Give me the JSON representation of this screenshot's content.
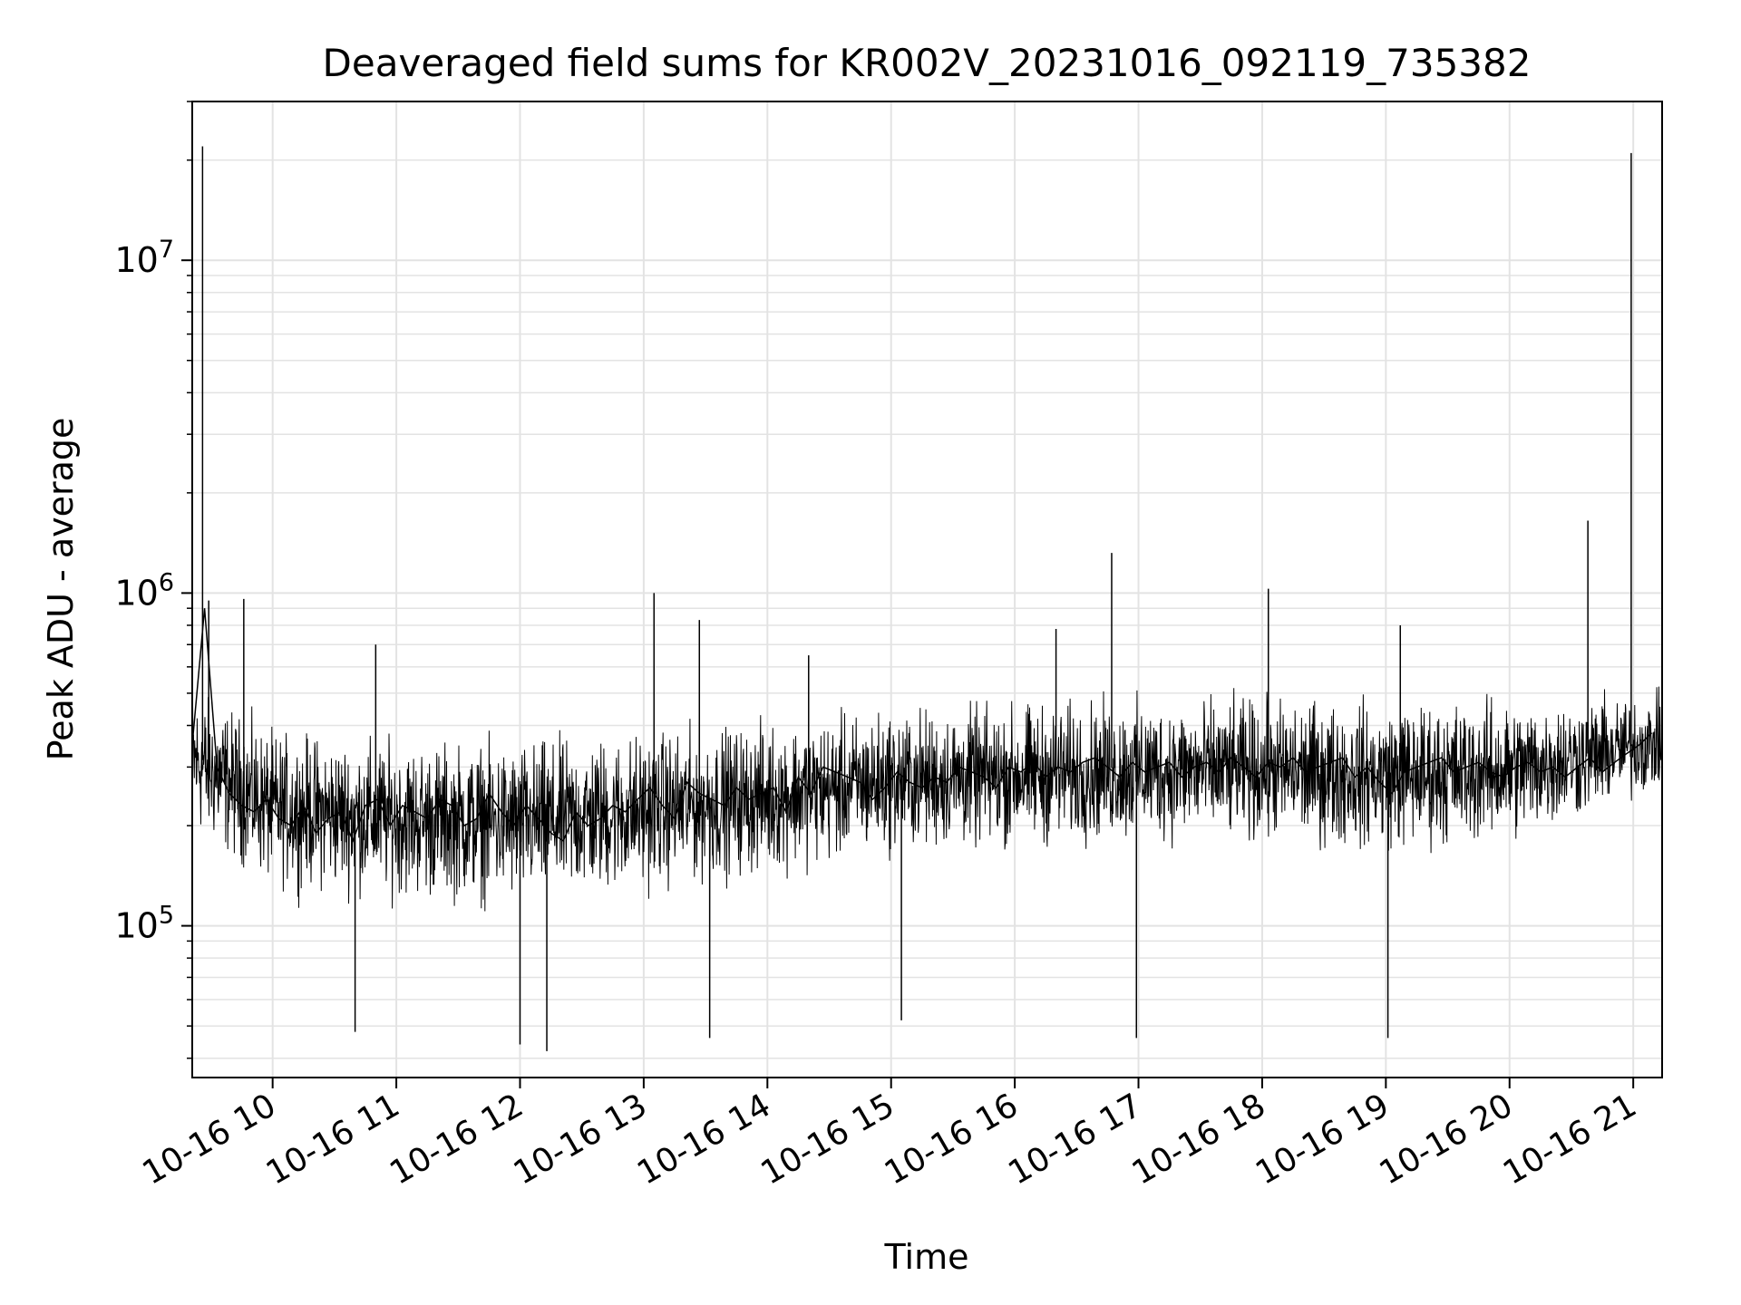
{
  "chart_data": {
    "type": "line",
    "title": "Deaveraged field sums for KR002V_20231016_092119_735382",
    "xlabel": "Time",
    "ylabel": "Peak ADU - average",
    "yscale": "log",
    "grid": true,
    "legend": "none",
    "line_color": "#000000",
    "xlim": [
      "2023-10-16 09:21",
      "2023-10-16 21:14"
    ],
    "ylim": [
      35000,
      30000000
    ],
    "x_ticks": [
      {
        "time": "2023-10-16 10:00",
        "label": "10-16 10"
      },
      {
        "time": "2023-10-16 11:00",
        "label": "10-16 11"
      },
      {
        "time": "2023-10-16 12:00",
        "label": "10-16 12"
      },
      {
        "time": "2023-10-16 13:00",
        "label": "10-16 13"
      },
      {
        "time": "2023-10-16 14:00",
        "label": "10-16 14"
      },
      {
        "time": "2023-10-16 15:00",
        "label": "10-16 15"
      },
      {
        "time": "2023-10-16 16:00",
        "label": "10-16 16"
      },
      {
        "time": "2023-10-16 17:00",
        "label": "10-16 17"
      },
      {
        "time": "2023-10-16 18:00",
        "label": "10-16 18"
      },
      {
        "time": "2023-10-16 19:00",
        "label": "10-16 19"
      },
      {
        "time": "2023-10-16 20:00",
        "label": "10-16 20"
      },
      {
        "time": "2023-10-16 21:00",
        "label": "10-16 21"
      }
    ],
    "y_ticks": [
      {
        "value": 100000,
        "base": "10",
        "exp": "5"
      },
      {
        "value": 1000000,
        "base": "10",
        "exp": "6"
      },
      {
        "value": 10000000,
        "base": "10",
        "exp": "7"
      }
    ],
    "series": [
      {
        "x": [
          "2023-10-16 09:21",
          "2023-10-16 09:27",
          "2023-10-16 09:33",
          "2023-10-16 09:39",
          "2023-10-16 09:45",
          "2023-10-16 09:51",
          "2023-10-16 09:57",
          "2023-10-16 10:03",
          "2023-10-16 10:09",
          "2023-10-16 10:15",
          "2023-10-16 10:21",
          "2023-10-16 10:27",
          "2023-10-16 10:33",
          "2023-10-16 10:39",
          "2023-10-16 10:45",
          "2023-10-16 10:51",
          "2023-10-16 10:57",
          "2023-10-16 11:03",
          "2023-10-16 11:09",
          "2023-10-16 11:15",
          "2023-10-16 11:21",
          "2023-10-16 11:27",
          "2023-10-16 11:33",
          "2023-10-16 11:39",
          "2023-10-16 11:45",
          "2023-10-16 11:51",
          "2023-10-16 11:57",
          "2023-10-16 12:03",
          "2023-10-16 12:09",
          "2023-10-16 12:15",
          "2023-10-16 12:21",
          "2023-10-16 12:27",
          "2023-10-16 12:33",
          "2023-10-16 12:39",
          "2023-10-16 12:45",
          "2023-10-16 12:51",
          "2023-10-16 12:57",
          "2023-10-16 13:03",
          "2023-10-16 13:09",
          "2023-10-16 13:15",
          "2023-10-16 13:21",
          "2023-10-16 13:27",
          "2023-10-16 13:33",
          "2023-10-16 13:39",
          "2023-10-16 13:45",
          "2023-10-16 13:51",
          "2023-10-16 13:57",
          "2023-10-16 14:03",
          "2023-10-16 14:09",
          "2023-10-16 14:15",
          "2023-10-16 14:21",
          "2023-10-16 14:27",
          "2023-10-16 14:33",
          "2023-10-16 14:39",
          "2023-10-16 14:45",
          "2023-10-16 14:51",
          "2023-10-16 14:57",
          "2023-10-16 15:03",
          "2023-10-16 15:09",
          "2023-10-16 15:15",
          "2023-10-16 15:21",
          "2023-10-16 15:27",
          "2023-10-16 15:33",
          "2023-10-16 15:39",
          "2023-10-16 15:45",
          "2023-10-16 15:51",
          "2023-10-16 15:57",
          "2023-10-16 16:03",
          "2023-10-16 16:09",
          "2023-10-16 16:15",
          "2023-10-16 16:21",
          "2023-10-16 16:27",
          "2023-10-16 16:33",
          "2023-10-16 16:39",
          "2023-10-16 16:45",
          "2023-10-16 16:51",
          "2023-10-16 16:57",
          "2023-10-16 17:03",
          "2023-10-16 17:09",
          "2023-10-16 17:15",
          "2023-10-16 17:21",
          "2023-10-16 17:27",
          "2023-10-16 17:33",
          "2023-10-16 17:39",
          "2023-10-16 17:45",
          "2023-10-16 17:51",
          "2023-10-16 17:57",
          "2023-10-16 18:03",
          "2023-10-16 18:09",
          "2023-10-16 18:15",
          "2023-10-16 18:21",
          "2023-10-16 18:27",
          "2023-10-16 18:33",
          "2023-10-16 18:39",
          "2023-10-16 18:45",
          "2023-10-16 18:51",
          "2023-10-16 18:57",
          "2023-10-16 19:03",
          "2023-10-16 19:09",
          "2023-10-16 19:15",
          "2023-10-16 19:21",
          "2023-10-16 19:27",
          "2023-10-16 19:33",
          "2023-10-16 19:39",
          "2023-10-16 19:45",
          "2023-10-16 19:51",
          "2023-10-16 19:57",
          "2023-10-16 20:03",
          "2023-10-16 20:09",
          "2023-10-16 20:15",
          "2023-10-16 20:21",
          "2023-10-16 20:27",
          "2023-10-16 20:33",
          "2023-10-16 20:39",
          "2023-10-16 20:45",
          "2023-10-16 20:51",
          "2023-10-16 20:57",
          "2023-10-16 21:03",
          "2023-10-16 21:09"
        ],
        "y": [
          350000,
          900000,
          300000,
          250000,
          230000,
          220000,
          240000,
          210000,
          200000,
          230000,
          190000,
          210000,
          220000,
          180000,
          230000,
          240000,
          200000,
          230000,
          220000,
          210000,
          240000,
          230000,
          200000,
          210000,
          250000,
          220000,
          200000,
          230000,
          210000,
          190000,
          180000,
          220000,
          200000,
          210000,
          230000,
          220000,
          240000,
          260000,
          230000,
          210000,
          270000,
          250000,
          240000,
          230000,
          260000,
          240000,
          250000,
          260000,
          220000,
          280000,
          250000,
          300000,
          290000,
          280000,
          270000,
          240000,
          260000,
          290000,
          270000,
          260000,
          280000,
          270000,
          300000,
          290000,
          280000,
          260000,
          300000,
          290000,
          310000,
          280000,
          300000,
          290000,
          310000,
          320000,
          300000,
          280000,
          310000,
          290000,
          300000,
          310000,
          280000,
          300000,
          310000,
          290000,
          320000,
          300000,
          280000,
          310000,
          300000,
          320000,
          290000,
          300000,
          310000,
          320000,
          280000,
          300000,
          270000,
          250000,
          290000,
          300000,
          310000,
          320000,
          290000,
          300000,
          310000,
          290000,
          280000,
          300000,
          310000,
          290000,
          300000,
          280000,
          300000,
          320000,
          290000,
          310000,
          330000,
          350000,
          380000
        ]
      }
    ],
    "noise_envelope": {
      "x": [
        "2023-10-16 09:21",
        "2023-10-16 10:00",
        "2023-10-16 11:00",
        "2023-10-16 12:00",
        "2023-10-16 13:00",
        "2023-10-16 14:00",
        "2023-10-16 15:00",
        "2023-10-16 16:00",
        "2023-10-16 17:00",
        "2023-10-16 18:00",
        "2023-10-16 19:00",
        "2023-10-16 20:00",
        "2023-10-16 21:14"
      ],
      "center": [
        330000,
        230000,
        220000,
        210000,
        230000,
        250000,
        280000,
        290000,
        300000,
        300000,
        290000,
        300000,
        360000
      ],
      "upper": [
        600000,
        450000,
        420000,
        420000,
        450000,
        480000,
        520000,
        540000,
        560000,
        560000,
        550000,
        560000,
        550000
      ],
      "lower": [
        160000,
        110000,
        100000,
        95000,
        105000,
        120000,
        140000,
        145000,
        150000,
        150000,
        140000,
        150000,
        230000
      ]
    },
    "spikes": [
      {
        "time": "2023-10-16 09:26",
        "value": 22000000
      },
      {
        "time": "2023-10-16 09:29",
        "value": 950000
      },
      {
        "time": "2023-10-16 09:46",
        "value": 960000
      },
      {
        "time": "2023-10-16 10:50",
        "value": 700000
      },
      {
        "time": "2023-10-16 13:05",
        "value": 1000000
      },
      {
        "time": "2023-10-16 13:27",
        "value": 830000
      },
      {
        "time": "2023-10-16 14:20",
        "value": 650000
      },
      {
        "time": "2023-10-16 16:20",
        "value": 780000
      },
      {
        "time": "2023-10-16 16:47",
        "value": 1320000
      },
      {
        "time": "2023-10-16 18:03",
        "value": 1030000
      },
      {
        "time": "2023-10-16 19:07",
        "value": 800000
      },
      {
        "time": "2023-10-16 20:38",
        "value": 1650000
      },
      {
        "time": "2023-10-16 20:59",
        "value": 21000000
      },
      {
        "time": "2023-10-16 10:40",
        "value": 48000
      },
      {
        "time": "2023-10-16 12:00",
        "value": 44000
      },
      {
        "time": "2023-10-16 12:13",
        "value": 42000
      },
      {
        "time": "2023-10-16 13:32",
        "value": 46000
      },
      {
        "time": "2023-10-16 15:05",
        "value": 52000
      },
      {
        "time": "2023-10-16 16:59",
        "value": 46000
      },
      {
        "time": "2023-10-16 19:01",
        "value": 46000
      }
    ]
  }
}
